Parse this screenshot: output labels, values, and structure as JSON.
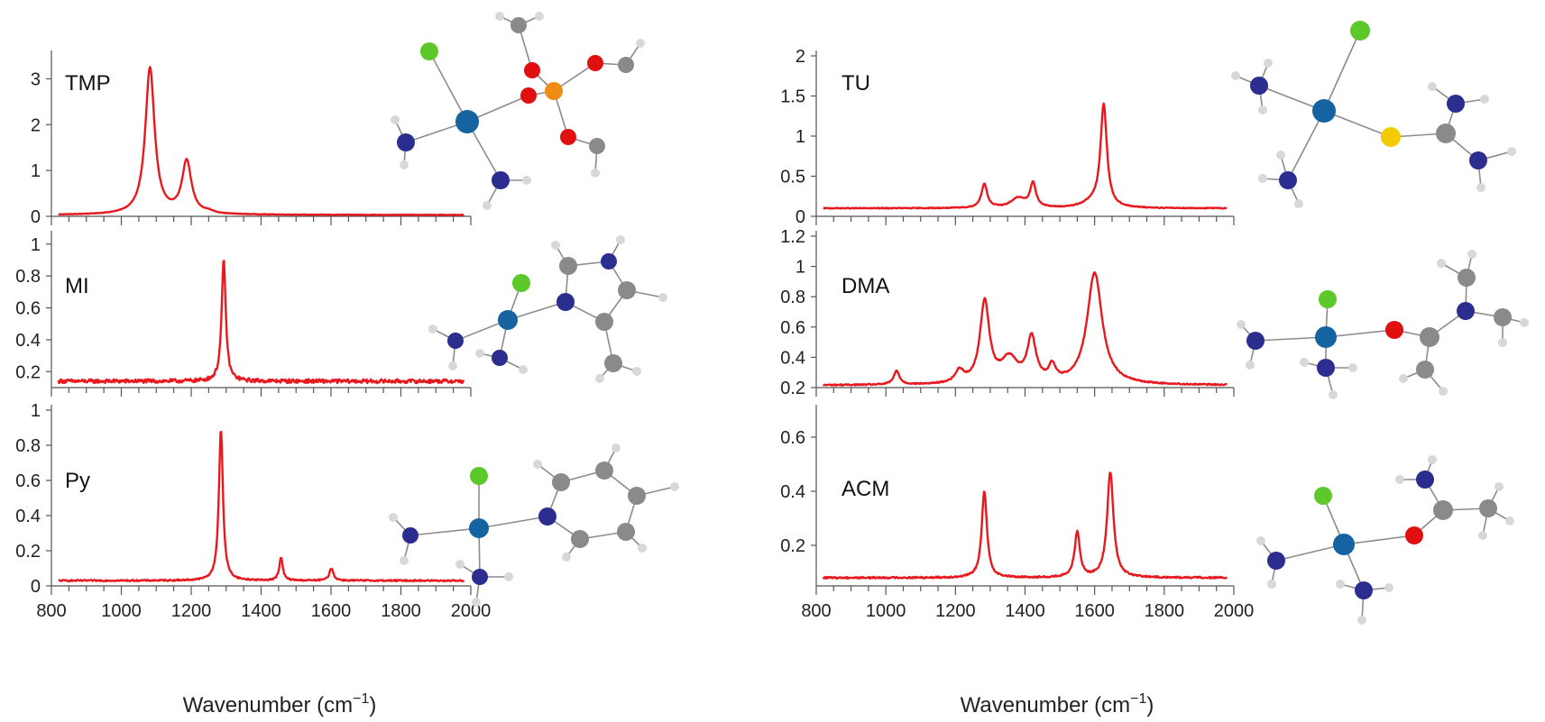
{
  "colors": {
    "spectrum": "#e8191e",
    "axis": "#555555"
  },
  "x_axis_title_prefix": "Wavenumber (cm",
  "x_axis_title_superscript": "−1",
  "x_axis_title_suffix": ")",
  "chart_data": [
    {
      "type": "line",
      "label": "TMP",
      "xlim": [
        800,
        2000
      ],
      "ylim": [
        0,
        3.5
      ],
      "yticks": [
        "0",
        "1",
        "2",
        "3"
      ],
      "ytick_values": [
        0,
        1,
        2,
        3
      ],
      "xticks": [],
      "xtick_values": [],
      "xlabel": "",
      "baseline": 0.03,
      "peaks": [
        {
          "x": 1082,
          "height": 3.2,
          "width": 16
        },
        {
          "x": 1187,
          "height": 1.15,
          "width": 16
        },
        {
          "x": 1250,
          "height": 0.04,
          "width": 15
        }
      ],
      "noise": 0.005
    },
    {
      "type": "line",
      "label": "MI",
      "xlim": [
        800,
        2000
      ],
      "ylim": [
        0.1,
        1.05
      ],
      "yticks": [
        "0.2",
        "0.4",
        "0.6",
        "0.8",
        "1"
      ],
      "ytick_values": [
        0.2,
        0.4,
        0.6,
        0.8,
        1.0
      ],
      "xticks": [],
      "xtick_values": [],
      "xlabel": "",
      "baseline": 0.14,
      "peaks": [
        {
          "x": 1293,
          "height": 0.76,
          "width": 7
        }
      ],
      "noise": 0.012
    },
    {
      "type": "line",
      "label": "Py",
      "xlim": [
        800,
        2000
      ],
      "ylim": [
        0,
        1.0
      ],
      "yticks": [
        "0",
        "0.2",
        "0.4",
        "0.6",
        "0.8",
        "1"
      ],
      "ytick_values": [
        0,
        0.2,
        0.4,
        0.6,
        0.8,
        1.0
      ],
      "xticks": [
        "800",
        "1000",
        "1200",
        "1400",
        "1600",
        "1800",
        "2000"
      ],
      "xtick_values": [
        800,
        1000,
        1200,
        1400,
        1600,
        1800,
        2000
      ],
      "xlabel": "Wavenumber",
      "baseline": 0.03,
      "peaks": [
        {
          "x": 1285,
          "height": 0.86,
          "width": 7
        },
        {
          "x": 1457,
          "height": 0.13,
          "width": 6
        },
        {
          "x": 1601,
          "height": 0.07,
          "width": 7
        }
      ],
      "noise": 0.004
    },
    {
      "type": "line",
      "label": "TU",
      "xlim": [
        800,
        2000
      ],
      "ylim": [
        0,
        2.0
      ],
      "yticks": [
        "0",
        "0.5",
        "1",
        "1.5",
        "2"
      ],
      "ytick_values": [
        0,
        0.5,
        1.0,
        1.5,
        2.0
      ],
      "xticks": [],
      "xtick_values": [],
      "xlabel": "",
      "baseline": 0.1,
      "peaks": [
        {
          "x": 1283,
          "height": 0.3,
          "width": 10
        },
        {
          "x": 1380,
          "height": 0.12,
          "width": 25
        },
        {
          "x": 1423,
          "height": 0.3,
          "width": 10
        },
        {
          "x": 1590,
          "height": 0.06,
          "width": 30
        },
        {
          "x": 1626,
          "height": 1.28,
          "width": 11
        }
      ],
      "noise": 0.005
    },
    {
      "type": "line",
      "label": "DMA",
      "xlim": [
        800,
        2000
      ],
      "ylim": [
        0.2,
        1.2
      ],
      "yticks": [
        "0.2",
        "0.4",
        "0.6",
        "0.8",
        "1",
        "1.2"
      ],
      "ytick_values": [
        0.2,
        0.4,
        0.6,
        0.8,
        1.0,
        1.2
      ],
      "xticks": [],
      "xtick_values": [],
      "xlabel": "",
      "baseline": 0.215,
      "peaks": [
        {
          "x": 1031,
          "height": 0.09,
          "width": 10
        },
        {
          "x": 1212,
          "height": 0.08,
          "width": 15
        },
        {
          "x": 1284,
          "height": 0.54,
          "width": 16
        },
        {
          "x": 1355,
          "height": 0.16,
          "width": 30
        },
        {
          "x": 1419,
          "height": 0.29,
          "width": 15
        },
        {
          "x": 1478,
          "height": 0.1,
          "width": 12
        },
        {
          "x": 1600,
          "height": 0.74,
          "width": 26
        }
      ],
      "noise": 0.004
    },
    {
      "type": "line",
      "label": "ACM",
      "xlim": [
        800,
        2000
      ],
      "ylim": [
        0.05,
        0.7
      ],
      "yticks": [
        "0.2",
        "0.4",
        "0.6"
      ],
      "ytick_values": [
        0.2,
        0.4,
        0.6
      ],
      "xticks": [
        "800",
        "1000",
        "1200",
        "1400",
        "1600",
        "1800",
        "2000"
      ],
      "xtick_values": [
        800,
        1000,
        1200,
        1400,
        1600,
        1800,
        2000
      ],
      "xlabel": "Wavenumber",
      "baseline": 0.08,
      "peaks": [
        {
          "x": 1283,
          "height": 0.32,
          "width": 9
        },
        {
          "x": 1550,
          "height": 0.17,
          "width": 9
        },
        {
          "x": 1645,
          "height": 0.39,
          "width": 11
        }
      ],
      "noise": 0.003
    }
  ]
}
